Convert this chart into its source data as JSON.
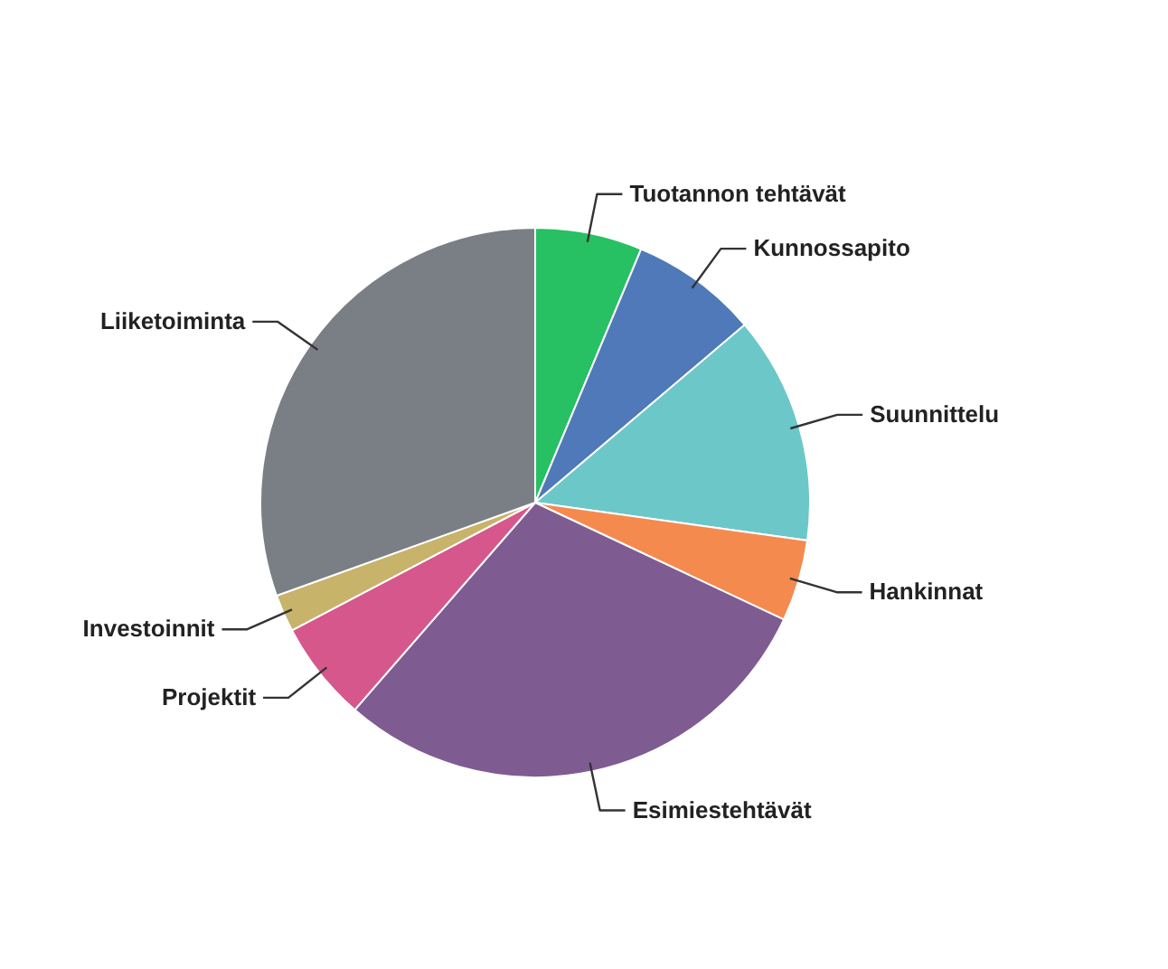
{
  "chart_data": {
    "type": "pie",
    "categories": [
      "Tuotannon tehtävät",
      "Kunnossapito",
      "Suunnittelu",
      "Hankinnat",
      "Esimiestehtävät",
      "Projektit",
      "Investoinnit",
      "Liiketoiminta"
    ],
    "values": [
      6.3,
      7.5,
      13.4,
      4.8,
      29.4,
      5.9,
      2.2,
      30.5
    ],
    "colors": [
      "#27c062",
      "#4f79b8",
      "#6cc7c9",
      "#f58a4e",
      "#7e5c92",
      "#d6578c",
      "#c8b36b",
      "#7a7f85"
    ]
  }
}
